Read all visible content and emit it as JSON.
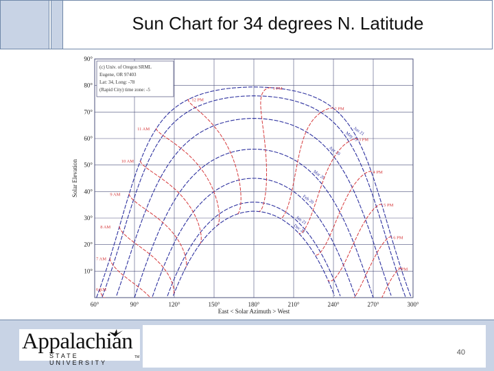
{
  "slide": {
    "title": "Sun Chart for 34 degrees N. Latitude",
    "page_number": "40"
  },
  "logo": {
    "main": "Appalachian",
    "sub": "STATE UNIVERSITY",
    "tm": "TM"
  },
  "diagram": {
    "legend_lines": [
      "(c) Univ. of Oregon SRML",
      "Eugene, OR 97403",
      "Lat: 34, Long: -78",
      "(Rapid City) time zone: -5"
    ],
    "y_axis_title": "Solar Elevation",
    "x_axis_title": "East <     Solar Azimuth     > West",
    "x_ticks": [
      {
        "label": "60°",
        "value": 60
      },
      {
        "label": "90°",
        "value": 90
      },
      {
        "label": "120°",
        "value": 120
      },
      {
        "label": "150°",
        "value": 150
      },
      {
        "label": "180°",
        "value": 180
      },
      {
        "label": "210°",
        "value": 210
      },
      {
        "label": "240°",
        "value": 240
      },
      {
        "label": "270°",
        "value": 270
      },
      {
        "label": "300°",
        "value": 300
      }
    ],
    "y_ticks": [
      {
        "label": "10°",
        "value": 10
      },
      {
        "label": "20°",
        "value": 20
      },
      {
        "label": "30°",
        "value": 30
      },
      {
        "label": "40°",
        "value": 40
      },
      {
        "label": "50°",
        "value": 50
      },
      {
        "label": "60°",
        "value": 60
      },
      {
        "label": "70°",
        "value": 70
      },
      {
        "label": "80°",
        "value": 80
      },
      {
        "label": "90°",
        "value": 90
      }
    ],
    "date_curve_labels": [
      "Jun 21",
      "May 21",
      "Apr 20",
      "Mar 20",
      "Feb 20",
      "Jan 21",
      "Dec 21"
    ],
    "hour_labels": [
      "6 AM",
      "7 AM",
      "8 AM",
      "9 AM",
      "10 AM",
      "11 AM",
      "12 PM",
      "1 PM",
      "2 PM",
      "3 PM",
      "4 PM",
      "5 PM",
      "6 PM",
      "7 PM"
    ],
    "colors": {
      "date_curve": "#2b2f9e",
      "hour_curve": "#d6383a",
      "grid": "#4a4f7a"
    }
  }
}
